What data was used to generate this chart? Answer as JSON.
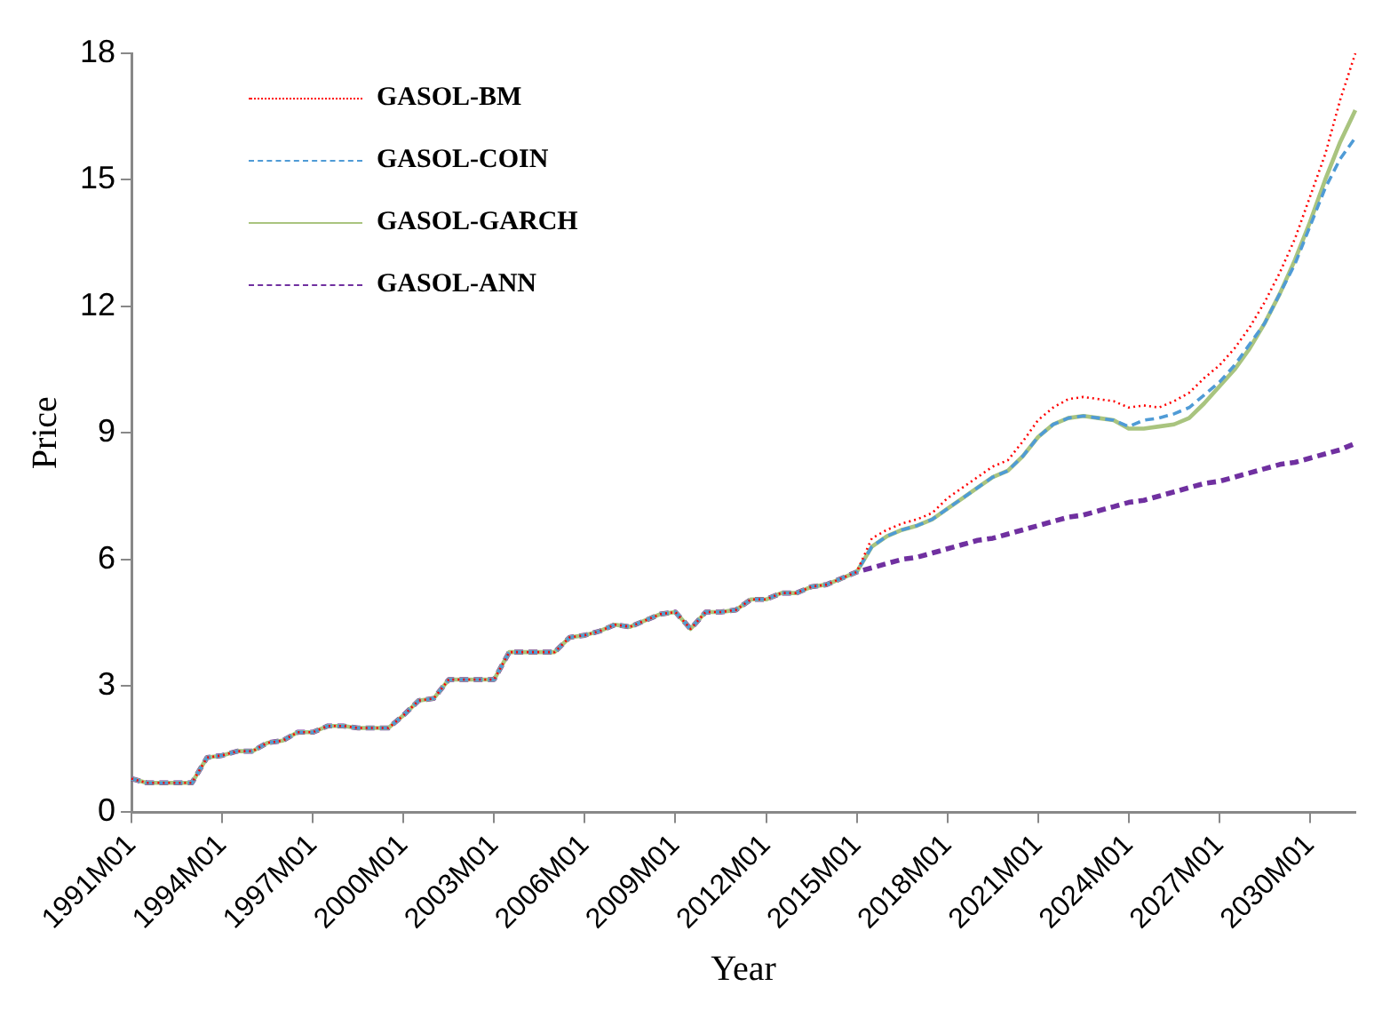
{
  "chart_data": {
    "type": "line",
    "xlabel": "Year",
    "ylabel": "Price",
    "categories": [
      "1991M01",
      null,
      null,
      null,
      null,
      null,
      "1994M01",
      null,
      null,
      null,
      null,
      null,
      "1997M01",
      null,
      null,
      null,
      null,
      null,
      "2000M01",
      null,
      null,
      null,
      null,
      null,
      "2003M01",
      null,
      null,
      null,
      null,
      null,
      "2006M01",
      null,
      null,
      null,
      null,
      null,
      "2009M01",
      null,
      null,
      null,
      null,
      null,
      "2012M01",
      null,
      null,
      null,
      null,
      null,
      "2015M01",
      null,
      null,
      null,
      null,
      null,
      "2018M01",
      null,
      null,
      null,
      null,
      null,
      "2021M01",
      null,
      null,
      null,
      null,
      null,
      "2024M01",
      null,
      null,
      null,
      null,
      null,
      "2027M01",
      null,
      null,
      null,
      null,
      null,
      "2030M01",
      null,
      null,
      null
    ],
    "ylim": [
      0,
      18
    ],
    "yticks": [
      0,
      3,
      6,
      9,
      12,
      15,
      18
    ],
    "grid": false,
    "legend": "top left",
    "marker": "none",
    "series": [
      {
        "name": "GASOL-BM",
        "color": "#ff0000",
        "line_style": "dotted",
        "values": [
          0.8,
          0.7,
          0.7,
          0.7,
          0.7,
          1.3,
          1.35,
          1.45,
          1.45,
          1.65,
          1.7,
          1.9,
          1.9,
          2.05,
          2.05,
          2.0,
          2.0,
          2.0,
          2.3,
          2.65,
          2.7,
          3.15,
          3.15,
          3.15,
          3.15,
          3.8,
          3.8,
          3.8,
          3.8,
          4.15,
          4.2,
          4.3,
          4.45,
          4.4,
          4.55,
          4.7,
          4.75,
          4.35,
          4.75,
          4.75,
          4.8,
          5.05,
          5.05,
          5.2,
          5.2,
          5.35,
          5.4,
          5.55,
          5.7,
          6.5,
          6.7,
          6.85,
          6.95,
          7.1,
          7.45,
          7.7,
          7.95,
          8.2,
          8.35,
          8.8,
          9.3,
          9.6,
          9.8,
          9.85,
          9.8,
          9.75,
          9.6,
          9.65,
          9.6,
          9.75,
          9.95,
          10.3,
          10.6,
          11.0,
          11.5,
          12.1,
          12.8,
          13.6,
          14.6,
          15.6,
          16.9,
          18.0
        ]
      },
      {
        "name": "GASOL-COIN",
        "color": "#4f9bd6",
        "line_style": "dashed",
        "values": [
          0.8,
          0.7,
          0.7,
          0.7,
          0.7,
          1.3,
          1.35,
          1.45,
          1.45,
          1.65,
          1.7,
          1.9,
          1.9,
          2.05,
          2.05,
          2.0,
          2.0,
          2.0,
          2.3,
          2.65,
          2.7,
          3.15,
          3.15,
          3.15,
          3.15,
          3.8,
          3.8,
          3.8,
          3.8,
          4.15,
          4.2,
          4.3,
          4.45,
          4.4,
          4.55,
          4.7,
          4.75,
          4.35,
          4.75,
          4.75,
          4.8,
          5.05,
          5.05,
          5.2,
          5.2,
          5.35,
          5.4,
          5.55,
          5.7,
          6.3,
          6.55,
          6.7,
          6.8,
          6.95,
          7.2,
          7.45,
          7.7,
          7.95,
          8.1,
          8.45,
          8.9,
          9.2,
          9.35,
          9.4,
          9.35,
          9.3,
          9.15,
          9.3,
          9.35,
          9.45,
          9.6,
          9.9,
          10.2,
          10.6,
          11.1,
          11.6,
          12.3,
          13.0,
          13.9,
          14.8,
          15.5,
          16.0
        ]
      },
      {
        "name": "GASOL-GARCH",
        "color": "#a9c47f",
        "line_style": "solid",
        "values": [
          0.8,
          0.7,
          0.7,
          0.7,
          0.7,
          1.3,
          1.35,
          1.45,
          1.45,
          1.65,
          1.7,
          1.9,
          1.9,
          2.05,
          2.05,
          2.0,
          2.0,
          2.0,
          2.3,
          2.65,
          2.7,
          3.15,
          3.15,
          3.15,
          3.15,
          3.8,
          3.8,
          3.8,
          3.8,
          4.15,
          4.2,
          4.3,
          4.45,
          4.4,
          4.55,
          4.7,
          4.75,
          4.35,
          4.75,
          4.75,
          4.8,
          5.05,
          5.05,
          5.2,
          5.2,
          5.35,
          5.4,
          5.55,
          5.7,
          6.3,
          6.55,
          6.7,
          6.8,
          6.95,
          7.2,
          7.45,
          7.7,
          7.95,
          8.1,
          8.45,
          8.9,
          9.2,
          9.35,
          9.4,
          9.35,
          9.3,
          9.1,
          9.1,
          9.15,
          9.2,
          9.35,
          9.7,
          10.1,
          10.5,
          11.0,
          11.6,
          12.3,
          13.1,
          14.0,
          15.0,
          15.9,
          16.65
        ]
      },
      {
        "name": "GASOL-ANN",
        "color": "#7030a0",
        "line_style": "dashed",
        "values": [
          0.8,
          0.7,
          0.7,
          0.7,
          0.7,
          1.3,
          1.35,
          1.45,
          1.45,
          1.65,
          1.7,
          1.9,
          1.9,
          2.05,
          2.05,
          2.0,
          2.0,
          2.0,
          2.3,
          2.65,
          2.7,
          3.15,
          3.15,
          3.15,
          3.15,
          3.8,
          3.8,
          3.8,
          3.8,
          4.15,
          4.2,
          4.3,
          4.45,
          4.4,
          4.55,
          4.7,
          4.75,
          4.35,
          4.75,
          4.75,
          4.8,
          5.05,
          5.05,
          5.2,
          5.2,
          5.35,
          5.4,
          5.55,
          5.7,
          5.8,
          5.9,
          6.0,
          6.05,
          6.15,
          6.25,
          6.35,
          6.45,
          6.5,
          6.6,
          6.7,
          6.8,
          6.9,
          7.0,
          7.05,
          7.15,
          7.25,
          7.35,
          7.4,
          7.5,
          7.6,
          7.7,
          7.8,
          7.85,
          7.95,
          8.05,
          8.15,
          8.25,
          8.3,
          8.4,
          8.5,
          8.6,
          8.75
        ]
      }
    ]
  }
}
